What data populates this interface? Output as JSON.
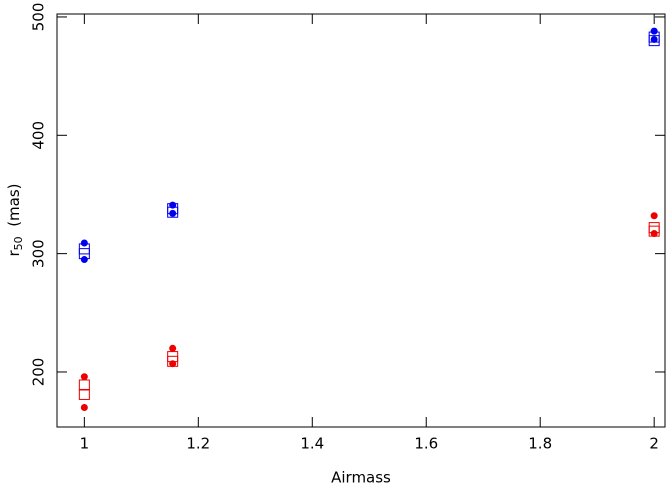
{
  "chart_data": {
    "type": "scatter",
    "xlabel": "Airmass",
    "ylabel": {
      "main": "r",
      "sub": "50",
      "rest": "  (mas)"
    },
    "xlim": [
      0.952,
      2.019
    ],
    "ylim": [
      153.5,
      502.5
    ],
    "xticks": [
      1,
      1.2,
      1.4,
      1.6,
      1.8,
      2
    ],
    "yticks": [
      200,
      300,
      400,
      500
    ],
    "series": [
      {
        "color": "#0000ee",
        "marker": "circle",
        "x": [
          1,
          1,
          1.155,
          1.155,
          2,
          2
        ],
        "values": [
          309,
          295,
          341,
          334,
          488,
          481
        ]
      },
      {
        "color": "#0000ee",
        "marker": "square",
        "x": [
          1,
          1,
          1.155,
          1.155,
          2,
          2
        ],
        "values": [
          304,
          300,
          338,
          335,
          483,
          480
        ]
      },
      {
        "color": "#ee0000",
        "marker": "circle",
        "x": [
          1,
          1,
          1.155,
          1.155,
          2,
          2
        ],
        "values": [
          196,
          170,
          220,
          207,
          332,
          317
        ]
      },
      {
        "color": "#ee0000",
        "marker": "square",
        "x": [
          1,
          1,
          1.155,
          1.155,
          2,
          2
        ],
        "values": [
          189,
          181,
          213,
          209,
          322,
          319
        ]
      }
    ]
  }
}
